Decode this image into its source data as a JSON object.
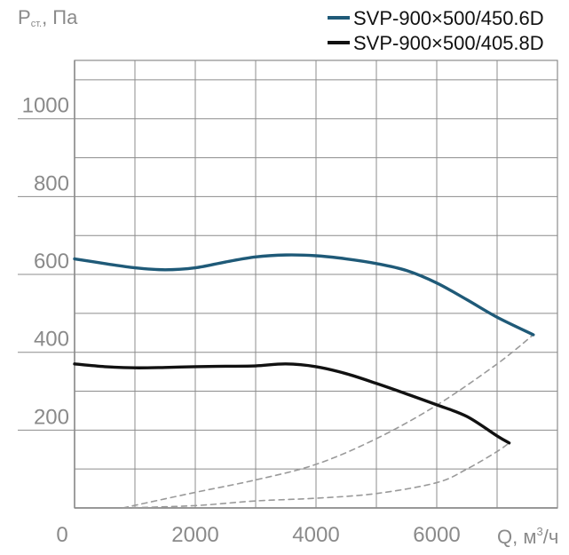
{
  "chart_data": {
    "type": "line",
    "ylabel_main": "P",
    "ylabel_sub": "ст.",
    "ylabel_unit": ", Па",
    "xlabel_main": "Q, м",
    "xlabel_sup": "3",
    "xlabel_tail": "/ч",
    "xlim": [
      0,
      8000
    ],
    "ylim": [
      0,
      1150
    ],
    "x_ticks": [
      0,
      2000,
      4000,
      6000
    ],
    "x_tick_labels": [
      "0",
      "2000",
      "4000",
      "6000"
    ],
    "y_ticks": [
      200,
      400,
      600,
      800,
      1000
    ],
    "y_tick_labels": [
      "200",
      "400",
      "600",
      "800",
      "1000"
    ],
    "grid": true,
    "legend_position": "top-right",
    "series": [
      {
        "name": "SVP-900×500/450.6D",
        "color": "#1f5a78",
        "style": "solid",
        "x": [
          0,
          500,
          1000,
          1500,
          2000,
          2500,
          3000,
          3500,
          4000,
          4500,
          5000,
          5500,
          6000,
          6500,
          7000,
          7600
        ],
        "y": [
          640,
          628,
          617,
          612,
          617,
          632,
          645,
          650,
          648,
          640,
          628,
          610,
          578,
          535,
          490,
          445
        ]
      },
      {
        "name": "SVP-900×500/405.8D",
        "color": "#111111",
        "style": "solid",
        "x": [
          0,
          500,
          1000,
          1500,
          2000,
          2500,
          3000,
          3500,
          4000,
          4500,
          5000,
          5500,
          6000,
          6500,
          7000,
          7200
        ],
        "y": [
          370,
          363,
          360,
          361,
          363,
          364,
          365,
          370,
          363,
          345,
          320,
          293,
          265,
          235,
          185,
          167
        ]
      },
      {
        "name": "",
        "color": "#9a9a9a",
        "style": "dashed",
        "x": [
          800,
          2000,
          3000,
          4000,
          5000,
          6000,
          7000,
          7600
        ],
        "y": [
          0,
          40,
          72,
          112,
          178,
          264,
          370,
          445
        ]
      },
      {
        "name": "",
        "color": "#9a9a9a",
        "style": "dashed",
        "x": [
          800,
          2000,
          3000,
          4000,
          5000,
          6000,
          6500,
          7000,
          7200
        ],
        "y": [
          0,
          6,
          18,
          25,
          37,
          65,
          100,
          145,
          167
        ]
      }
    ]
  }
}
